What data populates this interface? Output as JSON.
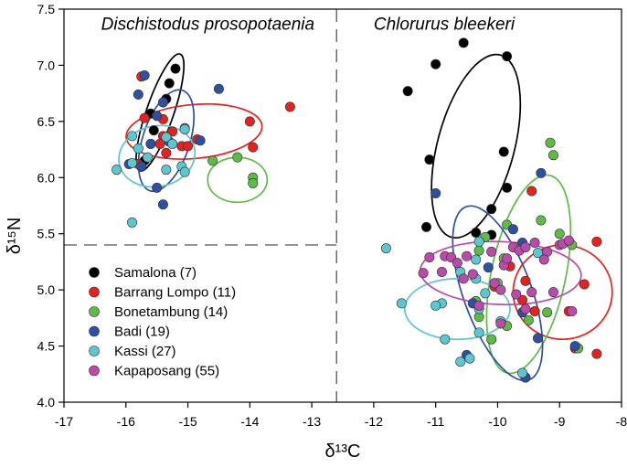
{
  "chart_data": {
    "type": "scatter",
    "xlabel": "δ¹³C",
    "ylabel": "δ¹⁵N",
    "xlim": [
      -17,
      -8
    ],
    "ylim": [
      4.0,
      7.5
    ],
    "xticks": [
      -17,
      -16,
      -15,
      -14,
      -13,
      -12,
      -11,
      -10,
      -9,
      -8
    ],
    "yticks": [
      4.0,
      4.5,
      5.0,
      5.5,
      6.0,
      6.5,
      7.0,
      7.5
    ],
    "xtick_labels": [
      "-17",
      "-16",
      "-15",
      "-14",
      "-13",
      "-12",
      "-11",
      "-10",
      "-9",
      "-8"
    ],
    "ytick_labels": [
      "4.0",
      "4.5",
      "5.0",
      "5.5",
      "6.0",
      "6.5",
      "7.0",
      "7.5"
    ],
    "divider_x": -12.6,
    "divider_y": 5.4,
    "panel_titles": [
      {
        "label": "Dischistodus prosopotaenia",
        "x": -16.4,
        "y": 7.35
      },
      {
        "label": "Chlorurus bleekeri",
        "x": -12.0,
        "y": 7.35
      }
    ],
    "series": [
      {
        "name": "Samalona (7)",
        "color": "#000000",
        "points": [
          [
            -15.2,
            6.97
          ],
          [
            -15.3,
            6.84
          ],
          [
            -15.35,
            6.7
          ],
          [
            -15.6,
            6.57
          ],
          [
            -15.55,
            6.42
          ],
          [
            -15.7,
            6.15
          ],
          [
            -10.55,
            7.2
          ],
          [
            -9.85,
            7.08
          ],
          [
            -11.0,
            7.01
          ],
          [
            -11.45,
            6.77
          ],
          [
            -9.9,
            6.23
          ],
          [
            -11.1,
            6.16
          ],
          [
            -9.85,
            5.91
          ],
          [
            -10.1,
            5.72
          ],
          [
            -11.15,
            5.56
          ],
          [
            -10.35,
            5.51
          ],
          [
            -10.1,
            5.49
          ]
        ],
        "ellipses": [
          {
            "cx": -15.45,
            "cy": 6.58,
            "rx": 0.22,
            "ry": 0.55,
            "rot": 19
          },
          {
            "cx": -10.35,
            "cy": 6.28,
            "rx": 0.62,
            "ry": 0.84,
            "rot": 15
          }
        ]
      },
      {
        "name": "Barrang Lompo (11)",
        "color": "#e8201e",
        "points": [
          [
            -15.75,
            6.9
          ],
          [
            -15.7,
            6.53
          ],
          [
            -15.4,
            6.52
          ],
          [
            -15.25,
            6.41
          ],
          [
            -15.4,
            6.37
          ],
          [
            -15.45,
            6.3
          ],
          [
            -15.1,
            6.28
          ],
          [
            -15.0,
            6.28
          ],
          [
            -15.35,
            6.22
          ],
          [
            -14.85,
            6.34
          ],
          [
            -14.0,
            6.5
          ],
          [
            -13.95,
            6.27
          ],
          [
            -13.35,
            6.63
          ],
          [
            -15.8,
            6.12
          ],
          [
            -9.45,
            5.88
          ],
          [
            -8.4,
            5.43
          ],
          [
            -9.8,
            5.21
          ],
          [
            -9.55,
            5.08
          ],
          [
            -8.6,
            5.05
          ],
          [
            -10.05,
            5.03
          ],
          [
            -9.6,
            4.91
          ],
          [
            -9.4,
            4.81
          ],
          [
            -8.85,
            4.81
          ],
          [
            -8.75,
            4.48
          ],
          [
            -8.4,
            4.43
          ]
        ],
        "ellipses": [
          {
            "cx": -14.9,
            "cy": 6.41,
            "rx": 1.1,
            "ry": 0.24,
            "rot": -5
          },
          {
            "cx": -8.95,
            "cy": 4.98,
            "rx": 0.8,
            "ry": 0.42,
            "rot": 0
          }
        ]
      },
      {
        "name": "Bonetambung (14)",
        "color": "#5dbb46",
        "points": [
          [
            -14.6,
            6.15
          ],
          [
            -14.2,
            6.18
          ],
          [
            -13.95,
            6.0
          ],
          [
            -13.95,
            5.95
          ],
          [
            -9.15,
            6.31
          ],
          [
            -9.1,
            6.2
          ],
          [
            -9.85,
            5.58
          ],
          [
            -9.3,
            5.62
          ],
          [
            -10.2,
            5.47
          ],
          [
            -9.0,
            5.5
          ],
          [
            -8.8,
            5.4
          ],
          [
            -9.7,
            5.38
          ],
          [
            -10.3,
            5.35
          ],
          [
            -9.9,
            5.28
          ],
          [
            -10.0,
            5.06
          ],
          [
            -10.35,
            4.9
          ],
          [
            -9.2,
            4.8
          ],
          [
            -10.3,
            4.76
          ],
          [
            -9.5,
            4.73
          ],
          [
            -9.85,
            4.68
          ],
          [
            -10.1,
            4.56
          ],
          [
            -9.55,
            4.22
          ],
          [
            -8.7,
            4.48
          ]
        ],
        "ellipses": [
          {
            "cx": -14.2,
            "cy": 5.98,
            "rx": 0.48,
            "ry": 0.2,
            "rot": 0
          },
          {
            "cx": -9.5,
            "cy": 5.14,
            "rx": 0.6,
            "ry": 0.9,
            "rot": 12
          }
        ]
      },
      {
        "name": "Badi (19)",
        "color": "#2e4fa2",
        "points": [
          [
            -15.7,
            6.91
          ],
          [
            -15.8,
            6.74
          ],
          [
            -15.5,
            6.55
          ],
          [
            -14.5,
            6.79
          ],
          [
            -15.4,
            6.67
          ],
          [
            -15.05,
            6.44
          ],
          [
            -15.6,
            6.3
          ],
          [
            -14.8,
            6.33
          ],
          [
            -15.3,
            6.32
          ],
          [
            -15.95,
            6.12
          ],
          [
            -15.75,
            6.1
          ],
          [
            -15.4,
            5.76
          ],
          [
            -15.5,
            5.91
          ],
          [
            -11.0,
            5.86
          ],
          [
            -9.3,
            6.04
          ],
          [
            -9.75,
            5.54
          ],
          [
            -9.6,
            5.42
          ],
          [
            -10.15,
            5.2
          ],
          [
            -10.4,
            4.88
          ],
          [
            -9.6,
            4.8
          ],
          [
            -10.5,
            4.42
          ],
          [
            -9.35,
            4.57
          ],
          [
            -9.55,
            4.22
          ],
          [
            -8.75,
            4.5
          ]
        ],
        "ellipses": [
          {
            "cx": -15.35,
            "cy": 6.33,
            "rx": 0.38,
            "ry": 0.47,
            "rot": 18
          },
          {
            "cx": -10.0,
            "cy": 4.97,
            "rx": 0.55,
            "ry": 0.82,
            "rot": -20
          }
        ]
      },
      {
        "name": "Kassi (27)",
        "color": "#5bc7cf",
        "points": [
          [
            -15.9,
            6.37
          ],
          [
            -15.35,
            6.36
          ],
          [
            -15.65,
            6.18
          ],
          [
            -15.8,
            6.26
          ],
          [
            -15.1,
            6.1
          ],
          [
            -16.15,
            6.07
          ],
          [
            -15.9,
            6.13
          ],
          [
            -15.35,
            6.07
          ],
          [
            -15.05,
            6.05
          ],
          [
            -15.25,
            6.3
          ],
          [
            -15.05,
            6.43
          ],
          [
            -15.9,
            5.6
          ],
          [
            -11.8,
            5.37
          ],
          [
            -10.3,
            5.43
          ],
          [
            -9.35,
            5.33
          ],
          [
            -10.35,
            5.27
          ],
          [
            -10.6,
            5.16
          ],
          [
            -10.35,
            5.1
          ],
          [
            -10.2,
            4.97
          ],
          [
            -10.9,
            4.88
          ],
          [
            -10.3,
            4.83
          ],
          [
            -11.55,
            4.88
          ],
          [
            -11.0,
            4.86
          ],
          [
            -9.95,
            4.72
          ],
          [
            -10.3,
            4.62
          ],
          [
            -10.85,
            4.56
          ],
          [
            -10.6,
            4.36
          ],
          [
            -10.45,
            4.39
          ],
          [
            -9.6,
            4.26
          ]
        ],
        "ellipses": [
          {
            "cx": -15.5,
            "cy": 6.19,
            "rx": 0.62,
            "ry": 0.27,
            "rot": -12
          },
          {
            "cx": -10.65,
            "cy": 4.83,
            "rx": 0.85,
            "ry": 0.27,
            "rot": 0
          }
        ]
      },
      {
        "name": "Kapaposang (55)",
        "color": "#bb4aab",
        "points": [
          [
            -11.1,
            5.29
          ],
          [
            -10.9,
            5.16
          ],
          [
            -10.85,
            5.3
          ],
          [
            -10.75,
            5.29
          ],
          [
            -10.65,
            5.24
          ],
          [
            -10.5,
            5.3
          ],
          [
            -10.4,
            5.14
          ],
          [
            -10.1,
            5.34
          ],
          [
            -10.05,
            5.06
          ],
          [
            -9.9,
            5.22
          ],
          [
            -9.85,
            5.28
          ],
          [
            -9.75,
            5.38
          ],
          [
            -9.65,
            5.35
          ],
          [
            -9.55,
            5.38
          ],
          [
            -9.4,
            5.42
          ],
          [
            -9.2,
            5.34
          ],
          [
            -9.0,
            5.4
          ],
          [
            -8.95,
            5.41
          ],
          [
            -8.85,
            5.44
          ],
          [
            -11.2,
            5.15
          ],
          [
            -9.95,
            5.0
          ],
          [
            -9.7,
            4.96
          ],
          [
            -9.45,
            4.98
          ],
          [
            -9.1,
            4.98
          ],
          [
            -8.8,
            4.81
          ],
          [
            -10.3,
            4.86
          ],
          [
            -9.55,
            4.83
          ],
          [
            -9.95,
            4.7
          ],
          [
            -10.55,
            5.1
          ],
          [
            -9.25,
            5.27
          ]
        ],
        "ellipses": [
          {
            "cx": -9.95,
            "cy": 5.15,
            "rx": 1.3,
            "ry": 0.28,
            "rot": 2
          }
        ]
      }
    ],
    "legend_position": "lower-left"
  }
}
